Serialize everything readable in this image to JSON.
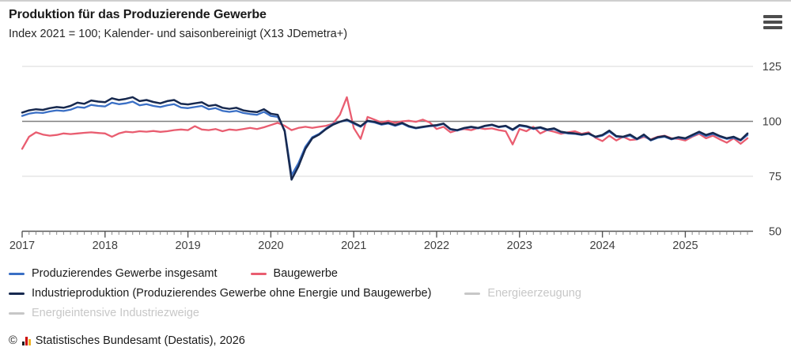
{
  "header": {
    "title": "Produktion für das Produzierende Gewerbe",
    "subtitle": "Index 2021 = 100; Kalender- und saisonbereinigt (X13 JDemetra+)"
  },
  "colors": {
    "blue": "#3a6fc5",
    "navy": "#17294f",
    "pink": "#e95d70",
    "disabled": "#c7c7c7",
    "grid_light": "#d8d8d8",
    "grid_dark": "#7f7f7f",
    "axis": "#555555",
    "month_tick": "#8a8a8a",
    "axis_text": "#404040"
  },
  "legend": {
    "items": [
      {
        "label": "Produzierendes Gewerbe insgesamt",
        "color_key": "blue",
        "active": true
      },
      {
        "label": "Baugewerbe",
        "color_key": "pink",
        "active": true
      },
      {
        "label": "Industrieproduktion (Produzierendes Gewerbe ohne Energie und Baugewerbe)",
        "color_key": "navy",
        "active": true
      },
      {
        "label": "Energieerzeugung",
        "color_key": "disabled",
        "active": false
      },
      {
        "label": "Energieintensive Industriezweige",
        "color_key": "disabled",
        "active": false
      }
    ]
  },
  "footer": {
    "copyright": "©",
    "source": "Statistisches Bundesamt (Destatis), 2026"
  },
  "chart_data": {
    "type": "line",
    "title": "Produktion für das Produzierende Gewerbe",
    "subtitle": "Index 2021 = 100; Kalender- und saisonbereinigt (X13 JDemetra+)",
    "frequency": "monthly",
    "x_start": "2017-01",
    "x_end": "2025-10",
    "x_years": [
      "2017",
      "2018",
      "2019",
      "2020",
      "2021",
      "2022",
      "2023",
      "2024",
      "2025"
    ],
    "y_ticks": [
      50,
      75,
      100,
      125
    ],
    "ylim": [
      50,
      130
    ],
    "grid": true,
    "legend_position": "bottom",
    "series": [
      {
        "name": "Baugewerbe",
        "color_key": "pink",
        "draw_order": 1,
        "values": [
          87.5,
          93,
          95,
          94,
          93.5,
          93.8,
          94.5,
          94.2,
          94.5,
          94.8,
          95,
          94.7,
          94.5,
          93,
          94.5,
          95.3,
          95,
          95.5,
          95.3,
          95.6,
          95.2,
          95.5,
          96,
          96.3,
          96,
          97.8,
          96.3,
          96,
          96.5,
          95.5,
          96.3,
          96,
          96.5,
          97,
          96.5,
          97.3,
          98.3,
          99.3,
          98,
          96,
          97,
          97.5,
          97,
          97.5,
          98,
          99,
          103,
          111,
          97,
          92,
          102,
          100.8,
          99.5,
          100.2,
          99.3,
          100,
          100.3,
          99.8,
          100.8,
          99.5,
          96.5,
          97.5,
          95,
          96,
          96.5,
          96,
          97,
          96.5,
          96.8,
          96,
          95.5,
          89.5,
          96.5,
          95.5,
          97.5,
          94.5,
          96,
          95.3,
          94.3,
          95,
          95.5,
          94.3,
          95,
          92.5,
          91,
          93.5,
          91.3,
          93,
          91.5,
          91.8,
          93,
          91.8,
          93,
          93.5,
          92.3,
          92,
          91.3,
          93,
          94.3,
          92.3,
          93.5,
          91.8,
          90.3,
          92.3,
          89.8,
          92.3
        ]
      },
      {
        "name": "Produzierendes Gewerbe insgesamt",
        "color_key": "blue",
        "draw_order": 2,
        "values": [
          102.5,
          103.5,
          104,
          103.8,
          104.5,
          105,
          104.7,
          105.3,
          106.5,
          106.2,
          107.5,
          107,
          106.8,
          108.5,
          107.8,
          108.2,
          109,
          107.3,
          107.8,
          107,
          106.5,
          107.3,
          107.8,
          106.3,
          106,
          106.5,
          107,
          105.5,
          106,
          104.8,
          104.3,
          104.8,
          103.8,
          103.3,
          103,
          104.3,
          102.5,
          102,
          96,
          75.5,
          81,
          88.5,
          92.8,
          94.3,
          96.8,
          98.8,
          99.8,
          100.5,
          99,
          97.5,
          100,
          99.5,
          98.5,
          99,
          98,
          99,
          97.5,
          96.8,
          97.3,
          97.8,
          98,
          98.8,
          96.3,
          95.8,
          96.8,
          97.3,
          96.8,
          97.8,
          98.3,
          97.3,
          97.8,
          96,
          98,
          97.5,
          96.5,
          97,
          96,
          96.5,
          95,
          94.5,
          94.3,
          93.8,
          94.3,
          92.8,
          93.5,
          95.3,
          93,
          92.8,
          93.5,
          91.8,
          93.5,
          91.3,
          92.5,
          93,
          91.8,
          92.5,
          92,
          93.3,
          94.8,
          93.3,
          94.3,
          93,
          92,
          92.5,
          91.3,
          93.8
        ]
      },
      {
        "name": "Industrieproduktion (Produzierendes Gewerbe ohne Energie und Baugewerbe)",
        "color_key": "navy",
        "draw_order": 3,
        "values": [
          104,
          105,
          105.5,
          105.2,
          106,
          106.5,
          106.2,
          107,
          108.5,
          108,
          109.5,
          109,
          108.7,
          110.5,
          109.7,
          110.2,
          111,
          109.2,
          109.7,
          108.8,
          108.2,
          109.2,
          109.7,
          108,
          107.7,
          108.2,
          108.7,
          107,
          107.5,
          106.2,
          105.7,
          106.2,
          105,
          104.5,
          104.2,
          105.5,
          103.5,
          103,
          95.5,
          73.5,
          79.5,
          87.5,
          92.3,
          94,
          96.5,
          98.5,
          99.8,
          100.8,
          99.3,
          97.8,
          100.3,
          99.8,
          98.8,
          99.3,
          98.3,
          99.3,
          97.8,
          97,
          97.5,
          98,
          98.3,
          99,
          96.5,
          96,
          97,
          97.5,
          97,
          98,
          98.5,
          97.5,
          98,
          96.3,
          98.3,
          97.8,
          96.8,
          97.3,
          96.3,
          96.8,
          95.3,
          94.8,
          94.5,
          94,
          94.5,
          93,
          93.8,
          95.8,
          93.3,
          93,
          94,
          92,
          94,
          91.5,
          92.8,
          93.3,
          92,
          92.8,
          92.3,
          93.8,
          95.3,
          93.8,
          94.8,
          93.3,
          92.3,
          93,
          91.5,
          94.5
        ]
      },
      {
        "name": "Energieerzeugung",
        "color_key": "disabled",
        "draw_order": 0,
        "hidden": true,
        "values": []
      },
      {
        "name": "Energieintensive Industriezweige",
        "color_key": "disabled",
        "draw_order": 0,
        "hidden": true,
        "values": []
      }
    ]
  }
}
